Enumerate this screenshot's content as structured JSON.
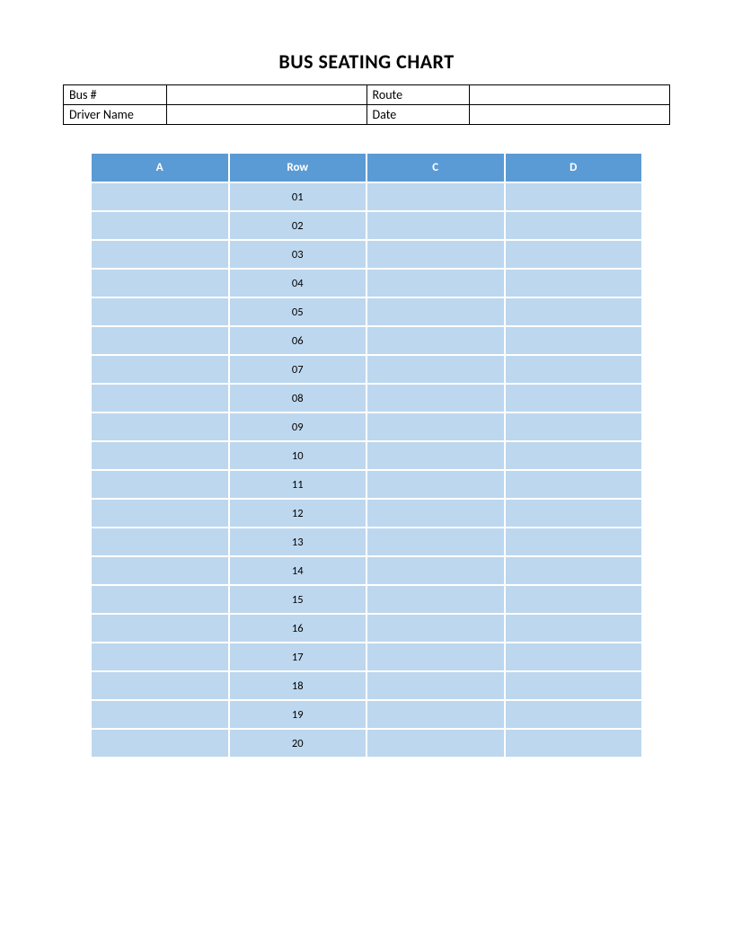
{
  "title": "BUS SEATING CHART",
  "info": {
    "bus_label": "Bus #",
    "bus_value": "",
    "route_label": "Route",
    "route_value": "",
    "driver_label": "Driver Name",
    "driver_value": "",
    "date_label": "Date",
    "date_value": ""
  },
  "seating": {
    "type": "table",
    "columns": [
      "A",
      "Row",
      "C",
      "D"
    ],
    "header_bg": "#5b9bd5",
    "header_color": "#ffffff",
    "row_bg": "#bdd7ee",
    "rows": [
      {
        "a": "",
        "row": "01",
        "c": "",
        "d": ""
      },
      {
        "a": "",
        "row": "02",
        "c": "",
        "d": ""
      },
      {
        "a": "",
        "row": "03",
        "c": "",
        "d": ""
      },
      {
        "a": "",
        "row": "04",
        "c": "",
        "d": ""
      },
      {
        "a": "",
        "row": "05",
        "c": "",
        "d": ""
      },
      {
        "a": "",
        "row": "06",
        "c": "",
        "d": ""
      },
      {
        "a": "",
        "row": "07",
        "c": "",
        "d": ""
      },
      {
        "a": "",
        "row": "08",
        "c": "",
        "d": ""
      },
      {
        "a": "",
        "row": "09",
        "c": "",
        "d": ""
      },
      {
        "a": "",
        "row": "10",
        "c": "",
        "d": ""
      },
      {
        "a": "",
        "row": "11",
        "c": "",
        "d": ""
      },
      {
        "a": "",
        "row": "12",
        "c": "",
        "d": ""
      },
      {
        "a": "",
        "row": "13",
        "c": "",
        "d": ""
      },
      {
        "a": "",
        "row": "14",
        "c": "",
        "d": ""
      },
      {
        "a": "",
        "row": "15",
        "c": "",
        "d": ""
      },
      {
        "a": "",
        "row": "16",
        "c": "",
        "d": ""
      },
      {
        "a": "",
        "row": "17",
        "c": "",
        "d": ""
      },
      {
        "a": "",
        "row": "18",
        "c": "",
        "d": ""
      },
      {
        "a": "",
        "row": "19",
        "c": "",
        "d": ""
      },
      {
        "a": "",
        "row": "20",
        "c": "",
        "d": ""
      }
    ]
  }
}
